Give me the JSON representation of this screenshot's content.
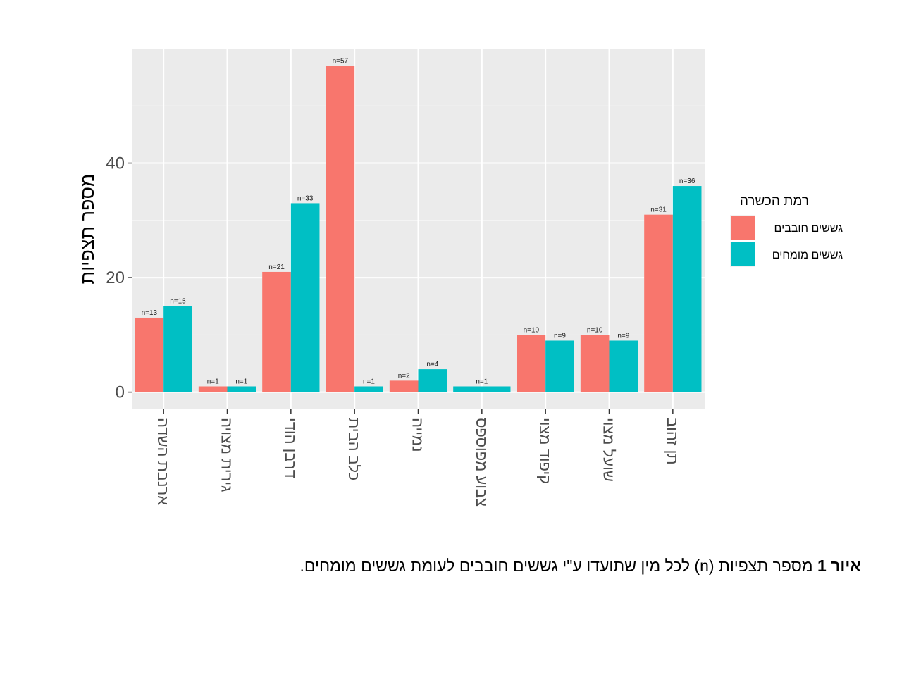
{
  "chart_data": {
    "type": "bar",
    "ylabel": "מספר תצפיות",
    "xlabel": "",
    "ylim": [
      -3,
      60
    ],
    "y_ticks": [
      0,
      20,
      40
    ],
    "grid": true,
    "legend_position": "right",
    "legend_title": "רמת הכשרה",
    "categories": [
      "ארנבת השדה",
      "גירית מצויה",
      "דרבן הודי",
      "כלב הבית",
      "נמייה",
      "צבוע מפוספס",
      "קיפוד מצוי",
      "שועל מצוי",
      "תן זהוב"
    ],
    "series": [
      {
        "name": "גששים חובבים",
        "color": "#f8766d",
        "values": [
          13,
          1,
          21,
          57,
          2,
          0,
          10,
          10,
          31
        ],
        "labels": [
          "n=13",
          "n=1",
          "n=21",
          "n=57",
          "n=2",
          "",
          "n=10",
          "n=10",
          "n=31"
        ]
      },
      {
        "name": "גששים מומחים",
        "color": "#00bfc4",
        "values": [
          15,
          1,
          33,
          1,
          4,
          1,
          9,
          9,
          36
        ],
        "labels": [
          "n=15",
          "n=1",
          "n=33",
          "n=1",
          "n=4",
          "n=1",
          "n=9",
          "n=9",
          "n=36"
        ]
      }
    ],
    "single_series_categories": [
      5
    ]
  },
  "caption": {
    "label": "איור 1",
    "text": " מספר תצפיות (n) לכל מין שתועדו ע\"י גששים חובבים לעומת גששים מומחים."
  }
}
